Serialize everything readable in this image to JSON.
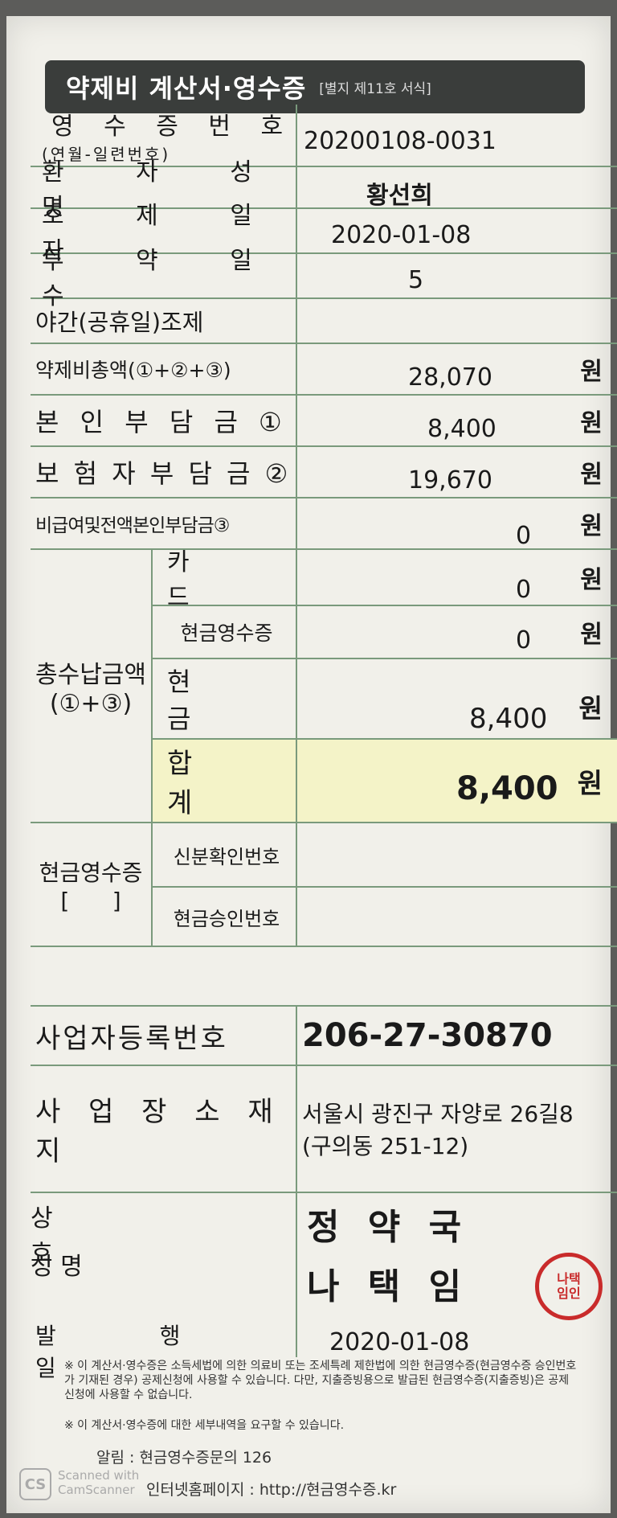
{
  "header": {
    "title": "약제비 계산서·영수증",
    "form_no": "[별지 제11호 서식]"
  },
  "rows": {
    "receipt_no_label": "영 수 증 번 호",
    "receipt_no_sub": "(연월-일련번호)",
    "receipt_no": "20200108-0031",
    "patient_label": "환 자 성 명",
    "patient": "황선희",
    "date_label": "조 제 일 자",
    "date": "2020-01-08",
    "days_label": "투 약 일 수",
    "days": "5",
    "night_label": "야간(공휴일)조제",
    "total_label": "약제비총액(①+②+③)",
    "total": "28,070",
    "self_label": "본 인 부 담 금 ①",
    "self": "8,400",
    "insurer_label": "보 험 자 부 담 금 ②",
    "insurer": "19,670",
    "nonpay_label": "비급여및전액본인부담금③",
    "nonpay": "0",
    "won": "원"
  },
  "payment": {
    "group_label": "총수납금액",
    "group_sub": "(①+③)",
    "card_label": "카 드",
    "card": "0",
    "cash_receipt_label": "현금영수증",
    "cash_receipt": "0",
    "cash_label": "현 금",
    "cash": "8,400",
    "sum_label": "합 계",
    "sum": "8,400"
  },
  "cash_receipt_section": {
    "label": "현금영수증",
    "bracket": "[      ]",
    "id_label": "신분확인번호",
    "approval_label": "현금승인번호"
  },
  "business": {
    "reg_label": "사업자등록번호",
    "reg_no": "206-27-30870",
    "addr_label": "사 업 장 소 재 지",
    "addr_line1": "서울시 광진구 자양로 26길8",
    "addr_line2": "(구의동 251-12)",
    "name_label": "상 호",
    "name": "정 약 국",
    "owner_label": "성 명",
    "owner": "나 택 임",
    "issue_label": "발 행 일",
    "issue_date": "2020-01-08"
  },
  "notes": {
    "note1": "※ 이 계산서·영수증은 소득세법에 의한 의료비 또는 조세특례 제한법에 의한 현금영수증(현금영수증 승인번호가 기재된 경우) 공제신청에 사용할 수 있습니다. 다만, 지출증빙용으로 발급된 현금영수증(지출증빙)은 공제신청에 사용할 수 없습니다.",
    "note2": "※ 이 계산서·영수증에 대한 세부내역을 요구할 수 있습니다.",
    "alert": "알림 : 현금영수증문의 126",
    "homepage": "인터넷홈페이지 : http://현금영수증.kr"
  },
  "watermark": "Scanned with CamScanner",
  "seal_text": "나택임인"
}
